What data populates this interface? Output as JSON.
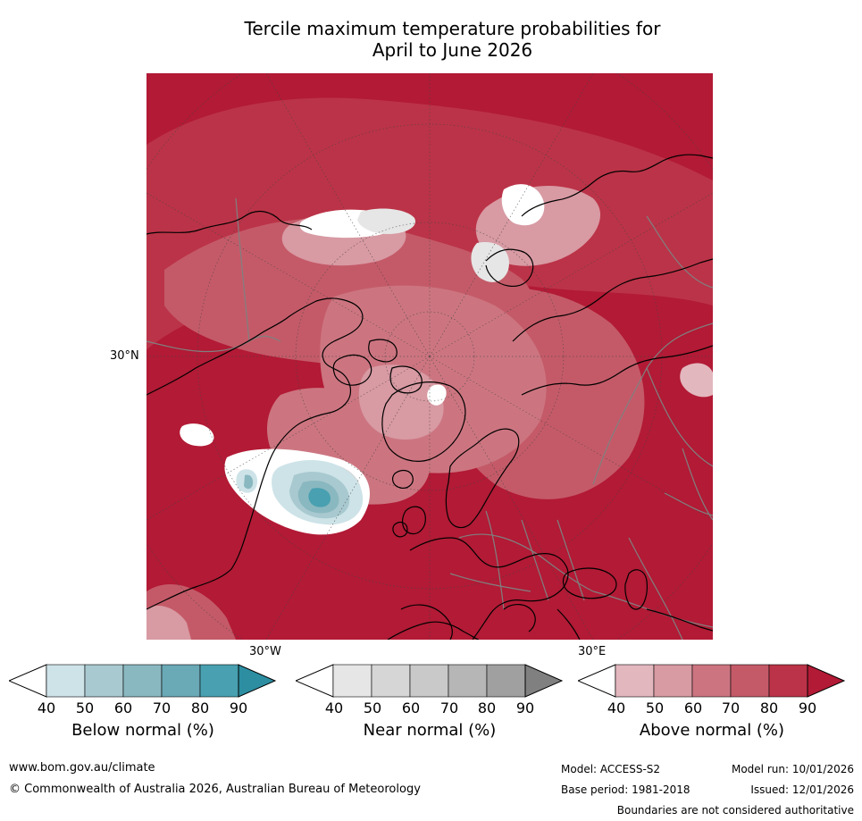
{
  "title": {
    "line1": "Tercile maximum temperature probabilities for",
    "line2": "April to June 2026"
  },
  "axis_labels": {
    "lat": "30°N",
    "lon_w": "30°W",
    "lon_e": "30°E"
  },
  "legend": [
    {
      "label": "Below normal (%)",
      "ticks": [
        "40",
        "50",
        "60",
        "70",
        "80",
        "90"
      ],
      "colors": [
        "#ffffff",
        "#cde3e8",
        "#a8c9cf",
        "#8ab8c0",
        "#6aa9b6",
        "#48a0b0",
        "#2d8ea2"
      ]
    },
    {
      "label": "Near normal (%)",
      "ticks": [
        "40",
        "50",
        "60",
        "70",
        "80",
        "90"
      ],
      "colors": [
        "#ffffff",
        "#e6e6e6",
        "#d6d6d6",
        "#c9c9c9",
        "#b6b6b6",
        "#a0a0a0",
        "#808080"
      ]
    },
    {
      "label": "Above normal (%)",
      "ticks": [
        "40",
        "50",
        "60",
        "70",
        "80",
        "90"
      ],
      "colors": [
        "#ffffff",
        "#e3b7be",
        "#d89aa3",
        "#cc7580",
        "#c45a68",
        "#bb3348",
        "#b21a35"
      ]
    }
  ],
  "footer": {
    "website": "www.bom.gov.au/climate",
    "copyright": "© Commonwealth of Australia 2026, Australian Bureau of Meteorology",
    "model": "Model: ACCESS-S2",
    "base_period": "Base period: 1981-2018",
    "model_run": "Model run: 10/01/2026",
    "issued": "Issued: 12/01/2026",
    "disclaimer": "Boundaries are not considered authoritative"
  },
  "map_colors": {
    "above_90": "#b21a35",
    "above_80": "#bb3348",
    "above_70": "#c45a68",
    "above_60": "#cc7580",
    "above_50": "#d89aa3",
    "above_40": "#e3b7be",
    "white": "#ffffff",
    "near_50": "#e6e6e6",
    "near_60": "#d6d6d6",
    "below_50": "#cde3e8",
    "below_60": "#a8c9cf",
    "below_70": "#8ab8c0",
    "below_80": "#48a0b0",
    "border": "#808080",
    "coast": "#000000"
  }
}
